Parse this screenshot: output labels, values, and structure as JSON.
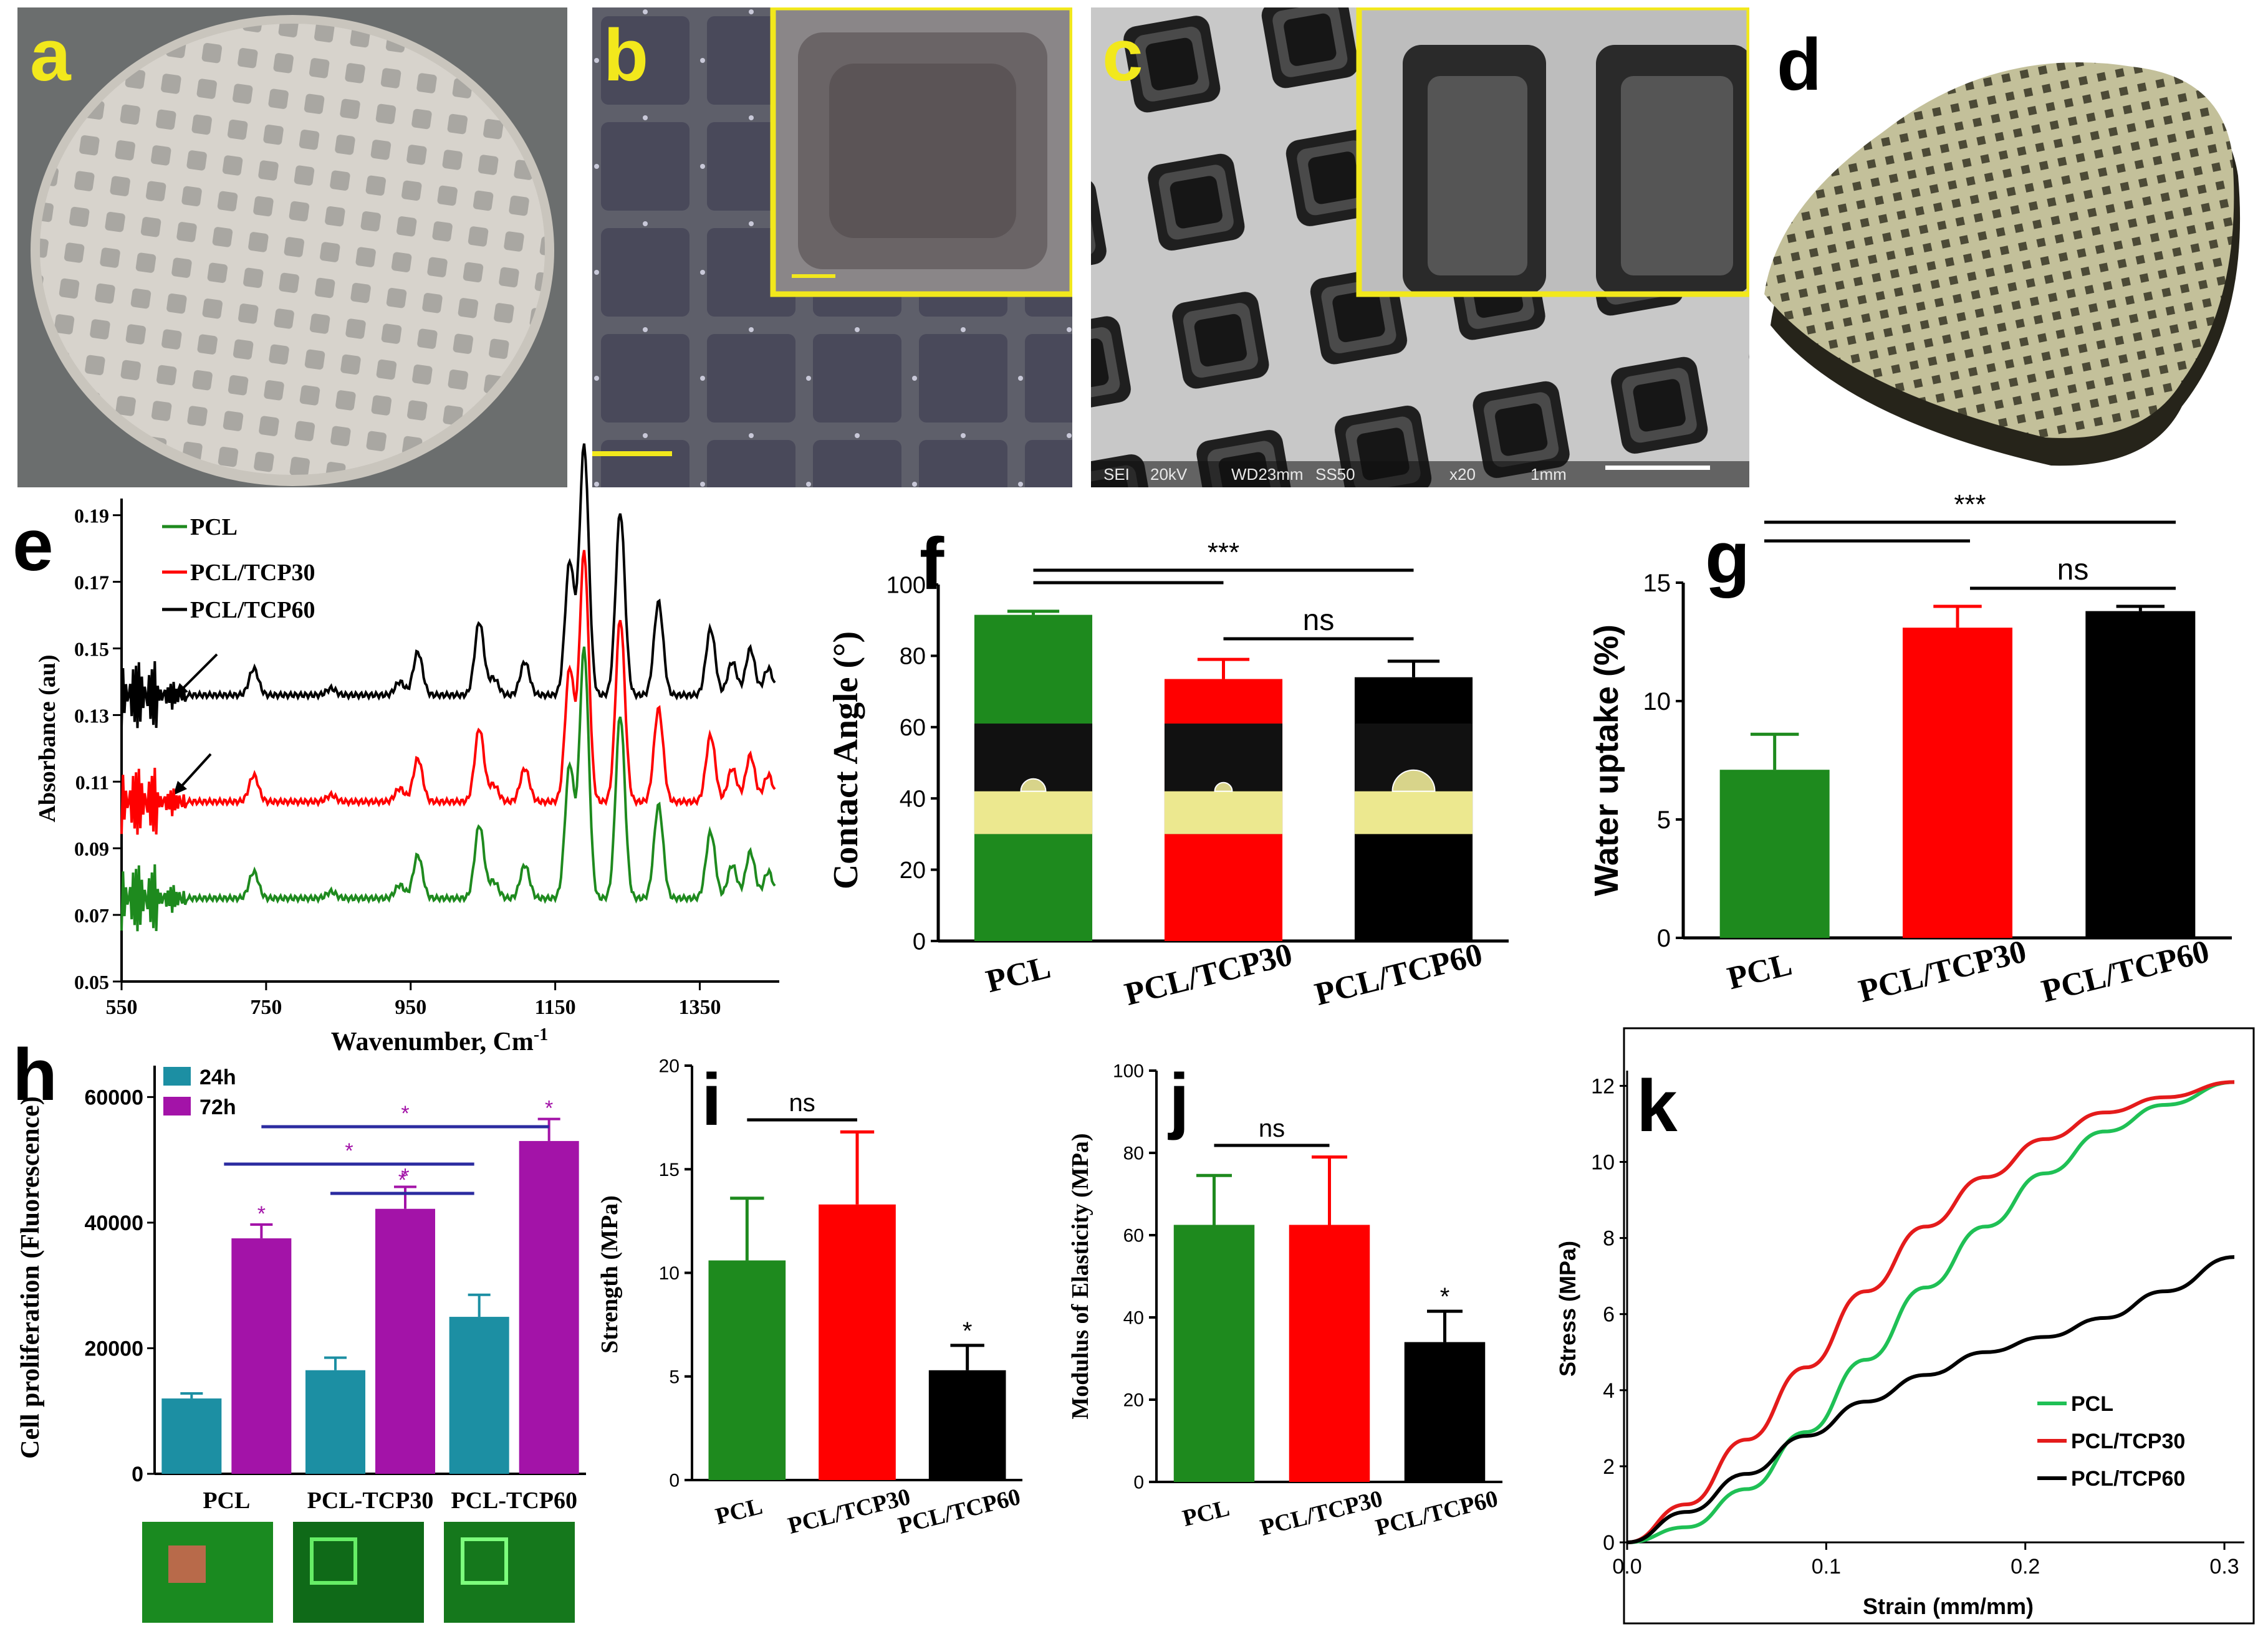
{
  "panels": {
    "a": {
      "letter": "a",
      "color": "#f2e81c"
    },
    "b": {
      "letter": "b",
      "color": "#f2e81c"
    },
    "c": {
      "letter": "c",
      "color": "#f2e81c"
    },
    "d": {
      "letter": "d",
      "color": "#000000"
    },
    "e": {
      "letter": "e"
    },
    "f": {
      "letter": "f"
    },
    "g": {
      "letter": "g"
    },
    "h": {
      "letter": "h"
    },
    "i": {
      "letter": "i"
    },
    "j": {
      "letter": "j"
    },
    "k": {
      "letter": "k"
    }
  },
  "sem_footer": {
    "detector": "SEI",
    "voltage": "20kV",
    "wd": "WD23mm",
    "spot": "SS50",
    "mag": "x20",
    "scale": "1mm"
  },
  "colors": {
    "pcl": "#1e8a1e",
    "tcp30": "#ff0000",
    "tcp60": "#000000",
    "h24": "#1c8fa3",
    "h72": "#a313a8",
    "navy": "#2b2ba0",
    "yellow": "#f2e81c"
  },
  "chart_data": [
    {
      "id": "e",
      "type": "line",
      "xlabel": "Wavenumber, Cm",
      "xlabel_sup": "-1",
      "ylabel": "Absorbance (au)",
      "xlim": [
        550,
        1460
      ],
      "ylim": [
        0.05,
        0.195
      ],
      "xticks": [
        "550",
        "750",
        "950",
        "1150",
        "1350"
      ],
      "yticks": [
        "0.05",
        "0.07",
        "0.09",
        "0.11",
        "0.13",
        "0.15",
        "0.17",
        "0.19"
      ],
      "legend": [
        "PCL",
        "PCL/TCP30",
        "PCL/TCP60"
      ],
      "series": [
        {
          "name": "PCL",
          "offset": 0.075
        },
        {
          "name": "PCL/TCP30",
          "offset": 0.104
        },
        {
          "name": "PCL/TCP60",
          "offset": 0.136
        }
      ],
      "peaks": [
        [
          733,
          0.008
        ],
        [
          840,
          0.002
        ],
        [
          935,
          0.004
        ],
        [
          960,
          0.013
        ],
        [
          1045,
          0.022
        ],
        [
          1065,
          0.005
        ],
        [
          1108,
          0.01
        ],
        [
          1170,
          0.04
        ],
        [
          1190,
          0.075
        ],
        [
          1240,
          0.055
        ],
        [
          1293,
          0.028
        ],
        [
          1365,
          0.02
        ],
        [
          1395,
          0.01
        ],
        [
          1420,
          0.014
        ],
        [
          1445,
          0.008
        ]
      ]
    },
    {
      "id": "f",
      "type": "bar",
      "ylabel": "Contact Angle (°)",
      "categories": [
        "PCL",
        "PCL/TCP30",
        "PCL/TCP60"
      ],
      "values": [
        91.5,
        73.5,
        74
      ],
      "errors": [
        1,
        5.5,
        4.5
      ],
      "ylim": [
        0,
        100
      ],
      "yticks": [
        "0",
        "20",
        "40",
        "60",
        "80",
        "100"
      ],
      "sig": [
        {
          "label": "***",
          "pair": [
            0,
            2
          ]
        },
        {
          "label": "",
          "pair": [
            0,
            1
          ]
        },
        {
          "label": "ns",
          "pair": [
            1,
            2
          ]
        }
      ]
    },
    {
      "id": "g",
      "type": "bar",
      "ylabel": "Water uptake (%)",
      "categories": [
        "PCL",
        "PCL/TCP30",
        "PCL/TCP60"
      ],
      "values": [
        7.1,
        13.1,
        13.8
      ],
      "errors": [
        1.5,
        0.9,
        0.2
      ],
      "ylim": [
        0,
        15
      ],
      "yticks": [
        "0",
        "5",
        "10",
        "15"
      ],
      "sig": [
        {
          "label": "***",
          "pair": [
            0,
            2
          ]
        },
        {
          "label": "",
          "pair": [
            0,
            1
          ]
        },
        {
          "label": "ns",
          "pair": [
            1,
            2
          ]
        }
      ]
    },
    {
      "id": "h",
      "type": "bar",
      "ylabel": "Cell proliferation (Fluorescence)",
      "categories": [
        "PCL",
        "PCL-TCP30",
        "PCL-TCP60"
      ],
      "series": [
        {
          "name": "24h",
          "values": [
            12000,
            16500,
            25000
          ],
          "errors": [
            800,
            2000,
            3500
          ]
        },
        {
          "name": "72h",
          "values": [
            37500,
            42200,
            53000
          ],
          "errors": [
            2200,
            3500,
            3500
          ]
        }
      ],
      "ylim": [
        0,
        65000
      ],
      "yticks": [
        "0",
        "20000",
        "40000",
        "60000"
      ],
      "star": "*"
    },
    {
      "id": "i",
      "type": "bar",
      "ylabel": "Strength (MPa)",
      "categories": [
        "PCL",
        "PCL/TCP30",
        "PCL/TCP60"
      ],
      "values": [
        10.6,
        13.3,
        5.3
      ],
      "errors": [
        3,
        3.5,
        1.2
      ],
      "ylim": [
        0,
        20
      ],
      "yticks": [
        "0",
        "5",
        "10",
        "15",
        "20"
      ],
      "ns": "ns",
      "star": "*"
    },
    {
      "id": "j",
      "type": "bar",
      "ylabel": "Modulus of Elasticity (MPa)",
      "categories": [
        "PCL",
        "PCL/TCP30",
        "PCL/TCP60"
      ],
      "values": [
        62.5,
        62.5,
        34
      ],
      "errors": [
        12,
        16.5,
        7.5
      ],
      "ylim": [
        0,
        100
      ],
      "yticks": [
        "0",
        "20",
        "40",
        "60",
        "80",
        "100"
      ],
      "ns": "ns",
      "star": "*"
    },
    {
      "id": "k",
      "type": "line",
      "xlabel": "Strain (mm/mm)",
      "ylabel": "Stress (MPa)",
      "xlim": [
        0,
        0.31
      ],
      "ylim": [
        0,
        12.4
      ],
      "xticks": [
        "0.0",
        "0.1",
        "0.2",
        "0.3"
      ],
      "yticks": [
        "0",
        "2",
        "4",
        "6",
        "8",
        "10",
        "12"
      ],
      "series": [
        {
          "name": "PCL",
          "x": [
            0,
            0.03,
            0.06,
            0.09,
            0.12,
            0.15,
            0.18,
            0.21,
            0.24,
            0.27,
            0.305
          ],
          "y": [
            0,
            0.4,
            1.4,
            2.9,
            4.8,
            6.7,
            8.3,
            9.7,
            10.8,
            11.5,
            12.1
          ]
        },
        {
          "name": "PCL/TCP30",
          "x": [
            0,
            0.03,
            0.06,
            0.09,
            0.12,
            0.15,
            0.18,
            0.21,
            0.24,
            0.27,
            0.305
          ],
          "y": [
            0,
            1.0,
            2.7,
            4.6,
            6.6,
            8.3,
            9.6,
            10.6,
            11.3,
            11.7,
            12.1
          ]
        },
        {
          "name": "PCL/TCP60",
          "x": [
            0,
            0.03,
            0.06,
            0.09,
            0.12,
            0.15,
            0.18,
            0.21,
            0.24,
            0.27,
            0.305
          ],
          "y": [
            0,
            0.8,
            1.8,
            2.8,
            3.7,
            4.4,
            5.0,
            5.4,
            5.9,
            6.6,
            7.5
          ]
        }
      ]
    }
  ]
}
